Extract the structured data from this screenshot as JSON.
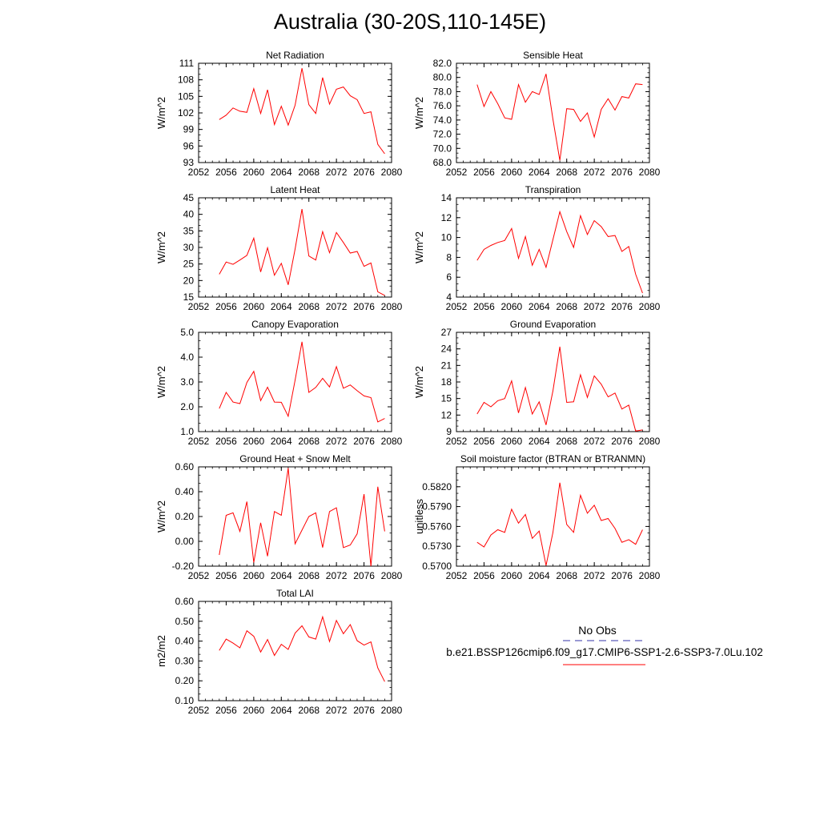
{
  "title": "Australia (30-20S,110-145E)",
  "legend": {
    "items": [
      {
        "label": "No Obs",
        "color": "#3333aa",
        "dash": true
      },
      {
        "label": "b.e21.BSSP126cmip6.f09_g17.CMIP6-SSP1-2.6-SSP3-7.0Lu.102",
        "color": "#ff0000",
        "dash": false
      }
    ]
  },
  "chart_data": [
    {
      "type": "line",
      "title": "Net Radiation",
      "ylabel": "W/m^2",
      "xlim": [
        2052,
        2080
      ],
      "ylim": [
        93,
        111
      ],
      "xticks": [
        "2052",
        "2056",
        "2060",
        "2064",
        "2068",
        "2072",
        "2076",
        "2080"
      ],
      "yticks": [
        "93",
        "96",
        "99",
        "102",
        "105",
        "108",
        "111"
      ],
      "color": "#ff0000",
      "x": [
        2055,
        2056,
        2057,
        2058,
        2059,
        2060,
        2061,
        2062,
        2063,
        2064,
        2065,
        2066,
        2067,
        2068,
        2069,
        2070,
        2071,
        2072,
        2073,
        2074,
        2075,
        2076,
        2077,
        2078,
        2079
      ],
      "values": [
        100.8,
        101.6,
        102.9,
        102.3,
        102.1,
        106.4,
        101.9,
        106.2,
        99.9,
        103.2,
        99.8,
        103.4,
        110.1,
        103.5,
        101.9,
        108.4,
        103.6,
        106.3,
        106.7,
        105.1,
        104.4,
        101.9,
        102.2,
        96.3,
        94.6
      ]
    },
    {
      "type": "line",
      "title": "Sensible Heat",
      "ylabel": "W/m^2",
      "xlim": [
        2052,
        2080
      ],
      "ylim": [
        68,
        82
      ],
      "xticks": [
        "2052",
        "2056",
        "2060",
        "2064",
        "2068",
        "2072",
        "2076",
        "2080"
      ],
      "yticks": [
        "68.0",
        "70.0",
        "72.0",
        "74.0",
        "76.0",
        "78.0",
        "80.0",
        "82.0"
      ],
      "color": "#ff0000",
      "x": [
        2055,
        2056,
        2057,
        2058,
        2059,
        2060,
        2061,
        2062,
        2063,
        2064,
        2065,
        2066,
        2067,
        2068,
        2069,
        2070,
        2071,
        2072,
        2073,
        2074,
        2075,
        2076,
        2077,
        2078,
        2079
      ],
      "values": [
        79.0,
        75.9,
        78.0,
        76.3,
        74.3,
        74.1,
        79.0,
        76.5,
        78.0,
        77.6,
        80.5,
        74.1,
        68.3,
        75.6,
        75.5,
        73.8,
        75.0,
        71.6,
        75.5,
        77.0,
        75.4,
        77.3,
        77.1,
        79.1,
        79.0
      ]
    },
    {
      "type": "line",
      "title": "Latent Heat",
      "ylabel": "W/m^2",
      "xlim": [
        2052,
        2080
      ],
      "ylim": [
        15,
        45
      ],
      "xticks": [
        "2052",
        "2056",
        "2060",
        "2064",
        "2068",
        "2072",
        "2076",
        "2080"
      ],
      "yticks": [
        "15",
        "20",
        "25",
        "30",
        "35",
        "40",
        "45"
      ],
      "color": "#ff0000",
      "x": [
        2055,
        2056,
        2057,
        2058,
        2059,
        2060,
        2061,
        2062,
        2063,
        2064,
        2065,
        2066,
        2067,
        2068,
        2069,
        2070,
        2071,
        2072,
        2073,
        2074,
        2075,
        2076,
        2077,
        2078,
        2079
      ],
      "values": [
        21.9,
        25.6,
        24.9,
        26.2,
        27.6,
        32.8,
        22.6,
        29.9,
        21.6,
        25.2,
        18.7,
        29.5,
        41.6,
        27.4,
        26.2,
        34.8,
        28.4,
        34.5,
        31.5,
        28.3,
        28.8,
        24.3,
        25.3,
        16.6,
        15.5
      ]
    },
    {
      "type": "line",
      "title": "Transpiration",
      "ylabel": "W/m^2",
      "xlim": [
        2052,
        2080
      ],
      "ylim": [
        4,
        14
      ],
      "xticks": [
        "2052",
        "2056",
        "2060",
        "2064",
        "2068",
        "2072",
        "2076",
        "2080"
      ],
      "yticks": [
        "4",
        "6",
        "8",
        "10",
        "12",
        "14"
      ],
      "color": "#ff0000",
      "x": [
        2055,
        2056,
        2057,
        2058,
        2059,
        2060,
        2061,
        2062,
        2063,
        2064,
        2065,
        2066,
        2067,
        2068,
        2069,
        2070,
        2071,
        2072,
        2073,
        2074,
        2075,
        2076,
        2077,
        2078,
        2079
      ],
      "values": [
        7.7,
        8.8,
        9.2,
        9.5,
        9.7,
        10.9,
        7.9,
        10.1,
        7.2,
        8.8,
        7.0,
        9.8,
        12.6,
        10.6,
        9.0,
        12.2,
        10.3,
        11.7,
        11.1,
        10.1,
        10.2,
        8.6,
        9.1,
        6.3,
        4.4
      ]
    },
    {
      "type": "line",
      "title": "Canopy Evaporation",
      "ylabel": "W/m^2",
      "xlim": [
        2052,
        2080
      ],
      "ylim": [
        1.0,
        5.0
      ],
      "xticks": [
        "2052",
        "2056",
        "2060",
        "2064",
        "2068",
        "2072",
        "2076",
        "2080"
      ],
      "yticks": [
        "1.0",
        "2.0",
        "3.0",
        "4.0",
        "5.0"
      ],
      "color": "#ff0000",
      "x": [
        2055,
        2056,
        2057,
        2058,
        2059,
        2060,
        2061,
        2062,
        2063,
        2064,
        2065,
        2066,
        2067,
        2068,
        2069,
        2070,
        2071,
        2072,
        2073,
        2074,
        2075,
        2076,
        2077,
        2078,
        2079
      ],
      "values": [
        1.93,
        2.58,
        2.19,
        2.13,
        2.98,
        3.43,
        2.25,
        2.79,
        2.19,
        2.18,
        1.62,
        3.07,
        4.62,
        2.58,
        2.78,
        3.15,
        2.8,
        3.62,
        2.75,
        2.88,
        2.65,
        2.44,
        2.37,
        1.39,
        1.53
      ]
    },
    {
      "type": "line",
      "title": "Ground Evaporation",
      "ylabel": "W/m^2",
      "xlim": [
        2052,
        2080
      ],
      "ylim": [
        9,
        27
      ],
      "xticks": [
        "2052",
        "2056",
        "2060",
        "2064",
        "2068",
        "2072",
        "2076",
        "2080"
      ],
      "yticks": [
        "9",
        "12",
        "15",
        "18",
        "21",
        "24",
        "27"
      ],
      "color": "#ff0000",
      "x": [
        2055,
        2056,
        2057,
        2058,
        2059,
        2060,
        2061,
        2062,
        2063,
        2064,
        2065,
        2066,
        2067,
        2068,
        2069,
        2070,
        2071,
        2072,
        2073,
        2074,
        2075,
        2076,
        2077,
        2078,
        2079
      ],
      "values": [
        12.2,
        14.3,
        13.5,
        14.6,
        15.0,
        18.2,
        12.4,
        17.0,
        12.2,
        14.4,
        10.2,
        16.4,
        24.4,
        14.3,
        14.4,
        19.3,
        15.2,
        19.1,
        17.6,
        15.3,
        16.0,
        13.1,
        13.8,
        9.1,
        9.3
      ]
    },
    {
      "type": "line",
      "title": "Ground Heat + Snow Melt",
      "ylabel": "W/m^2",
      "xlim": [
        2052,
        2080
      ],
      "ylim": [
        -0.2,
        0.6
      ],
      "xticks": [
        "2052",
        "2056",
        "2060",
        "2064",
        "2068",
        "2072",
        "2076",
        "2080"
      ],
      "yticks": [
        "-0.20",
        "0.00",
        "0.20",
        "0.40",
        "0.60"
      ],
      "color": "#ff0000",
      "x": [
        2055,
        2056,
        2057,
        2058,
        2059,
        2060,
        2061,
        2062,
        2063,
        2064,
        2065,
        2066,
        2067,
        2068,
        2069,
        2070,
        2071,
        2072,
        2073,
        2074,
        2075,
        2076,
        2077,
        2078,
        2079
      ],
      "values": [
        -0.11,
        0.21,
        0.23,
        0.08,
        0.32,
        -0.17,
        0.15,
        -0.12,
        0.24,
        0.21,
        0.59,
        -0.02,
        0.09,
        0.2,
        0.23,
        -0.05,
        0.24,
        0.27,
        -0.05,
        -0.03,
        0.06,
        0.38,
        -0.2,
        0.44,
        0.08
      ]
    },
    {
      "type": "line",
      "title": "Soil moisture factor (BTRAN or BTRANMN)",
      "ylabel": "unitless",
      "xlim": [
        2052,
        2080
      ],
      "ylim": [
        0.57,
        0.585
      ],
      "xticks": [
        "2052",
        "2056",
        "2060",
        "2064",
        "2068",
        "2072",
        "2076",
        "2080"
      ],
      "yticks": [
        "0.5700",
        "0.5730",
        "0.5760",
        "0.5790",
        "0.5820"
      ],
      "color": "#ff0000",
      "x": [
        2055,
        2056,
        2057,
        2058,
        2059,
        2060,
        2061,
        2062,
        2063,
        2064,
        2065,
        2066,
        2067,
        2068,
        2069,
        2070,
        2071,
        2072,
        2073,
        2074,
        2075,
        2076,
        2077,
        2078,
        2079
      ],
      "values": [
        0.5736,
        0.5729,
        0.5747,
        0.5755,
        0.5751,
        0.5786,
        0.5765,
        0.5778,
        0.5742,
        0.5753,
        0.5701,
        0.5751,
        0.5826,
        0.5763,
        0.5751,
        0.5807,
        0.578,
        0.5792,
        0.5769,
        0.5772,
        0.5757,
        0.5736,
        0.574,
        0.5733,
        0.5755
      ]
    },
    {
      "type": "line",
      "title": "Total LAI",
      "ylabel": "m2/m2",
      "xlim": [
        2052,
        2080
      ],
      "ylim": [
        0.1,
        0.6
      ],
      "xticks": [
        "2052",
        "2056",
        "2060",
        "2064",
        "2068",
        "2072",
        "2076",
        "2080"
      ],
      "yticks": [
        "0.10",
        "0.20",
        "0.30",
        "0.40",
        "0.50",
        "0.60"
      ],
      "color": "#ff0000",
      "x": [
        2055,
        2056,
        2057,
        2058,
        2059,
        2060,
        2061,
        2062,
        2063,
        2064,
        2065,
        2066,
        2067,
        2068,
        2069,
        2070,
        2071,
        2072,
        2073,
        2074,
        2075,
        2076,
        2077,
        2078,
        2079
      ],
      "values": [
        0.353,
        0.41,
        0.39,
        0.366,
        0.452,
        0.424,
        0.345,
        0.408,
        0.328,
        0.384,
        0.358,
        0.44,
        0.477,
        0.421,
        0.41,
        0.522,
        0.398,
        0.504,
        0.437,
        0.483,
        0.402,
        0.38,
        0.396,
        0.265,
        0.196
      ]
    }
  ]
}
